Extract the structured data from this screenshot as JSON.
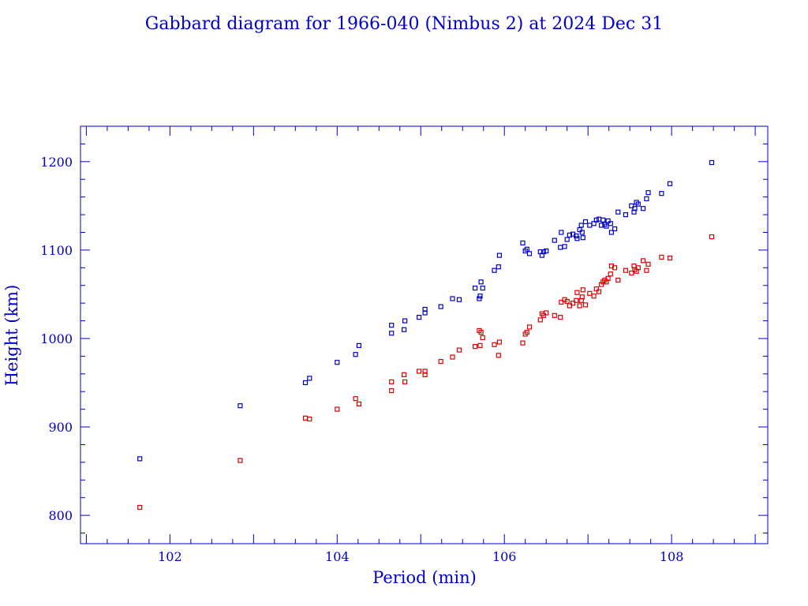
{
  "chart_data": {
    "type": "scatter",
    "title": "Gabbard diagram for 1966-040 (Nimbus 2) at 2024 Dec 31",
    "xlabel": "Period (min)",
    "ylabel": "Height (km)",
    "xlim": [
      100.93,
      109.15
    ],
    "ylim": [
      768,
      1240
    ],
    "xticks": [
      102,
      104,
      106,
      108
    ],
    "yticks": [
      800,
      900,
      1000,
      1100,
      1200
    ],
    "grid": false,
    "legend": "none",
    "colors": {
      "axes": "#0000cc",
      "apogee": "#0000cc",
      "perigee": "#dd0000"
    },
    "series": [
      {
        "color": "#0000cc",
        "points": [
          [
            101.64,
            864
          ],
          [
            102.84,
            924
          ],
          [
            103.62,
            950
          ],
          [
            103.67,
            955
          ],
          [
            104.0,
            973
          ],
          [
            104.22,
            982
          ],
          [
            104.26,
            992
          ],
          [
            104.65,
            1006
          ],
          [
            104.65,
            1015
          ],
          [
            104.8,
            1010
          ],
          [
            104.81,
            1020
          ],
          [
            104.98,
            1024
          ],
          [
            105.05,
            1029
          ],
          [
            105.05,
            1033
          ],
          [
            105.24,
            1036
          ],
          [
            105.38,
            1045
          ],
          [
            105.46,
            1044
          ],
          [
            105.65,
            1057
          ],
          [
            105.7,
            1045
          ],
          [
            105.71,
            1048
          ],
          [
            105.72,
            1064
          ],
          [
            105.74,
            1057
          ],
          [
            105.88,
            1077
          ],
          [
            105.93,
            1081
          ],
          [
            105.94,
            1094
          ],
          [
            106.22,
            1108
          ],
          [
            106.25,
            1099
          ],
          [
            106.27,
            1101
          ],
          [
            106.3,
            1096
          ],
          [
            106.43,
            1098
          ],
          [
            106.45,
            1094
          ],
          [
            106.47,
            1098
          ],
          [
            106.5,
            1099
          ],
          [
            106.6,
            1111
          ],
          [
            106.67,
            1103
          ],
          [
            106.68,
            1120
          ],
          [
            106.72,
            1104
          ],
          [
            106.75,
            1112
          ],
          [
            106.78,
            1117
          ],
          [
            106.82,
            1118
          ],
          [
            106.86,
            1116
          ],
          [
            106.87,
            1113
          ],
          [
            106.9,
            1123
          ],
          [
            106.92,
            1128
          ],
          [
            106.93,
            1120
          ],
          [
            106.94,
            1114
          ],
          [
            106.97,
            1132
          ],
          [
            107.02,
            1128
          ],
          [
            107.07,
            1130
          ],
          [
            107.1,
            1134
          ],
          [
            107.13,
            1135
          ],
          [
            107.16,
            1128
          ],
          [
            107.18,
            1134
          ],
          [
            107.2,
            1129
          ],
          [
            107.22,
            1127
          ],
          [
            107.24,
            1133
          ],
          [
            107.27,
            1130
          ],
          [
            107.28,
            1120
          ],
          [
            107.32,
            1124
          ],
          [
            107.36,
            1143
          ],
          [
            107.45,
            1140
          ],
          [
            107.52,
            1150
          ],
          [
            107.55,
            1143
          ],
          [
            107.56,
            1147
          ],
          [
            107.58,
            1154
          ],
          [
            107.6,
            1152
          ],
          [
            107.66,
            1147
          ],
          [
            107.7,
            1158
          ],
          [
            107.72,
            1165
          ],
          [
            107.88,
            1164
          ],
          [
            107.98,
            1175
          ],
          [
            108.48,
            1199
          ]
        ]
      },
      {
        "color": "#dd0000",
        "points": [
          [
            101.64,
            809
          ],
          [
            102.84,
            862
          ],
          [
            103.62,
            910
          ],
          [
            103.67,
            909
          ],
          [
            104.0,
            920
          ],
          [
            104.22,
            932
          ],
          [
            104.26,
            926
          ],
          [
            104.65,
            941
          ],
          [
            104.65,
            951
          ],
          [
            104.8,
            959
          ],
          [
            104.81,
            951
          ],
          [
            104.98,
            963
          ],
          [
            105.05,
            959
          ],
          [
            105.05,
            963
          ],
          [
            105.24,
            974
          ],
          [
            105.38,
            979
          ],
          [
            105.46,
            987
          ],
          [
            105.65,
            991
          ],
          [
            105.7,
            1009
          ],
          [
            105.71,
            992
          ],
          [
            105.72,
            1007
          ],
          [
            105.74,
            1001
          ],
          [
            105.88,
            993
          ],
          [
            105.93,
            981
          ],
          [
            105.94,
            996
          ],
          [
            106.22,
            995
          ],
          [
            106.25,
            1005
          ],
          [
            106.27,
            1007
          ],
          [
            106.3,
            1013
          ],
          [
            106.43,
            1021
          ],
          [
            106.45,
            1028
          ],
          [
            106.47,
            1026
          ],
          [
            106.5,
            1029
          ],
          [
            106.6,
            1026
          ],
          [
            106.67,
            1024
          ],
          [
            106.68,
            1041
          ],
          [
            106.72,
            1044
          ],
          [
            106.75,
            1042
          ],
          [
            106.78,
            1037
          ],
          [
            106.82,
            1040
          ],
          [
            106.86,
            1043
          ],
          [
            106.87,
            1052
          ],
          [
            106.9,
            1037
          ],
          [
            106.92,
            1043
          ],
          [
            106.93,
            1047
          ],
          [
            106.94,
            1055
          ],
          [
            106.97,
            1038
          ],
          [
            107.02,
            1051
          ],
          [
            107.07,
            1048
          ],
          [
            107.1,
            1056
          ],
          [
            107.13,
            1053
          ],
          [
            107.16,
            1061
          ],
          [
            107.18,
            1064
          ],
          [
            107.2,
            1066
          ],
          [
            107.22,
            1064
          ],
          [
            107.24,
            1068
          ],
          [
            107.27,
            1073
          ],
          [
            107.28,
            1082
          ],
          [
            107.32,
            1080
          ],
          [
            107.36,
            1066
          ],
          [
            107.45,
            1077
          ],
          [
            107.52,
            1074
          ],
          [
            107.55,
            1082
          ],
          [
            107.56,
            1078
          ],
          [
            107.58,
            1076
          ],
          [
            107.6,
            1080
          ],
          [
            107.66,
            1088
          ],
          [
            107.7,
            1077
          ],
          [
            107.72,
            1084
          ],
          [
            107.88,
            1092
          ],
          [
            107.98,
            1091
          ],
          [
            108.48,
            1115
          ]
        ]
      }
    ]
  }
}
